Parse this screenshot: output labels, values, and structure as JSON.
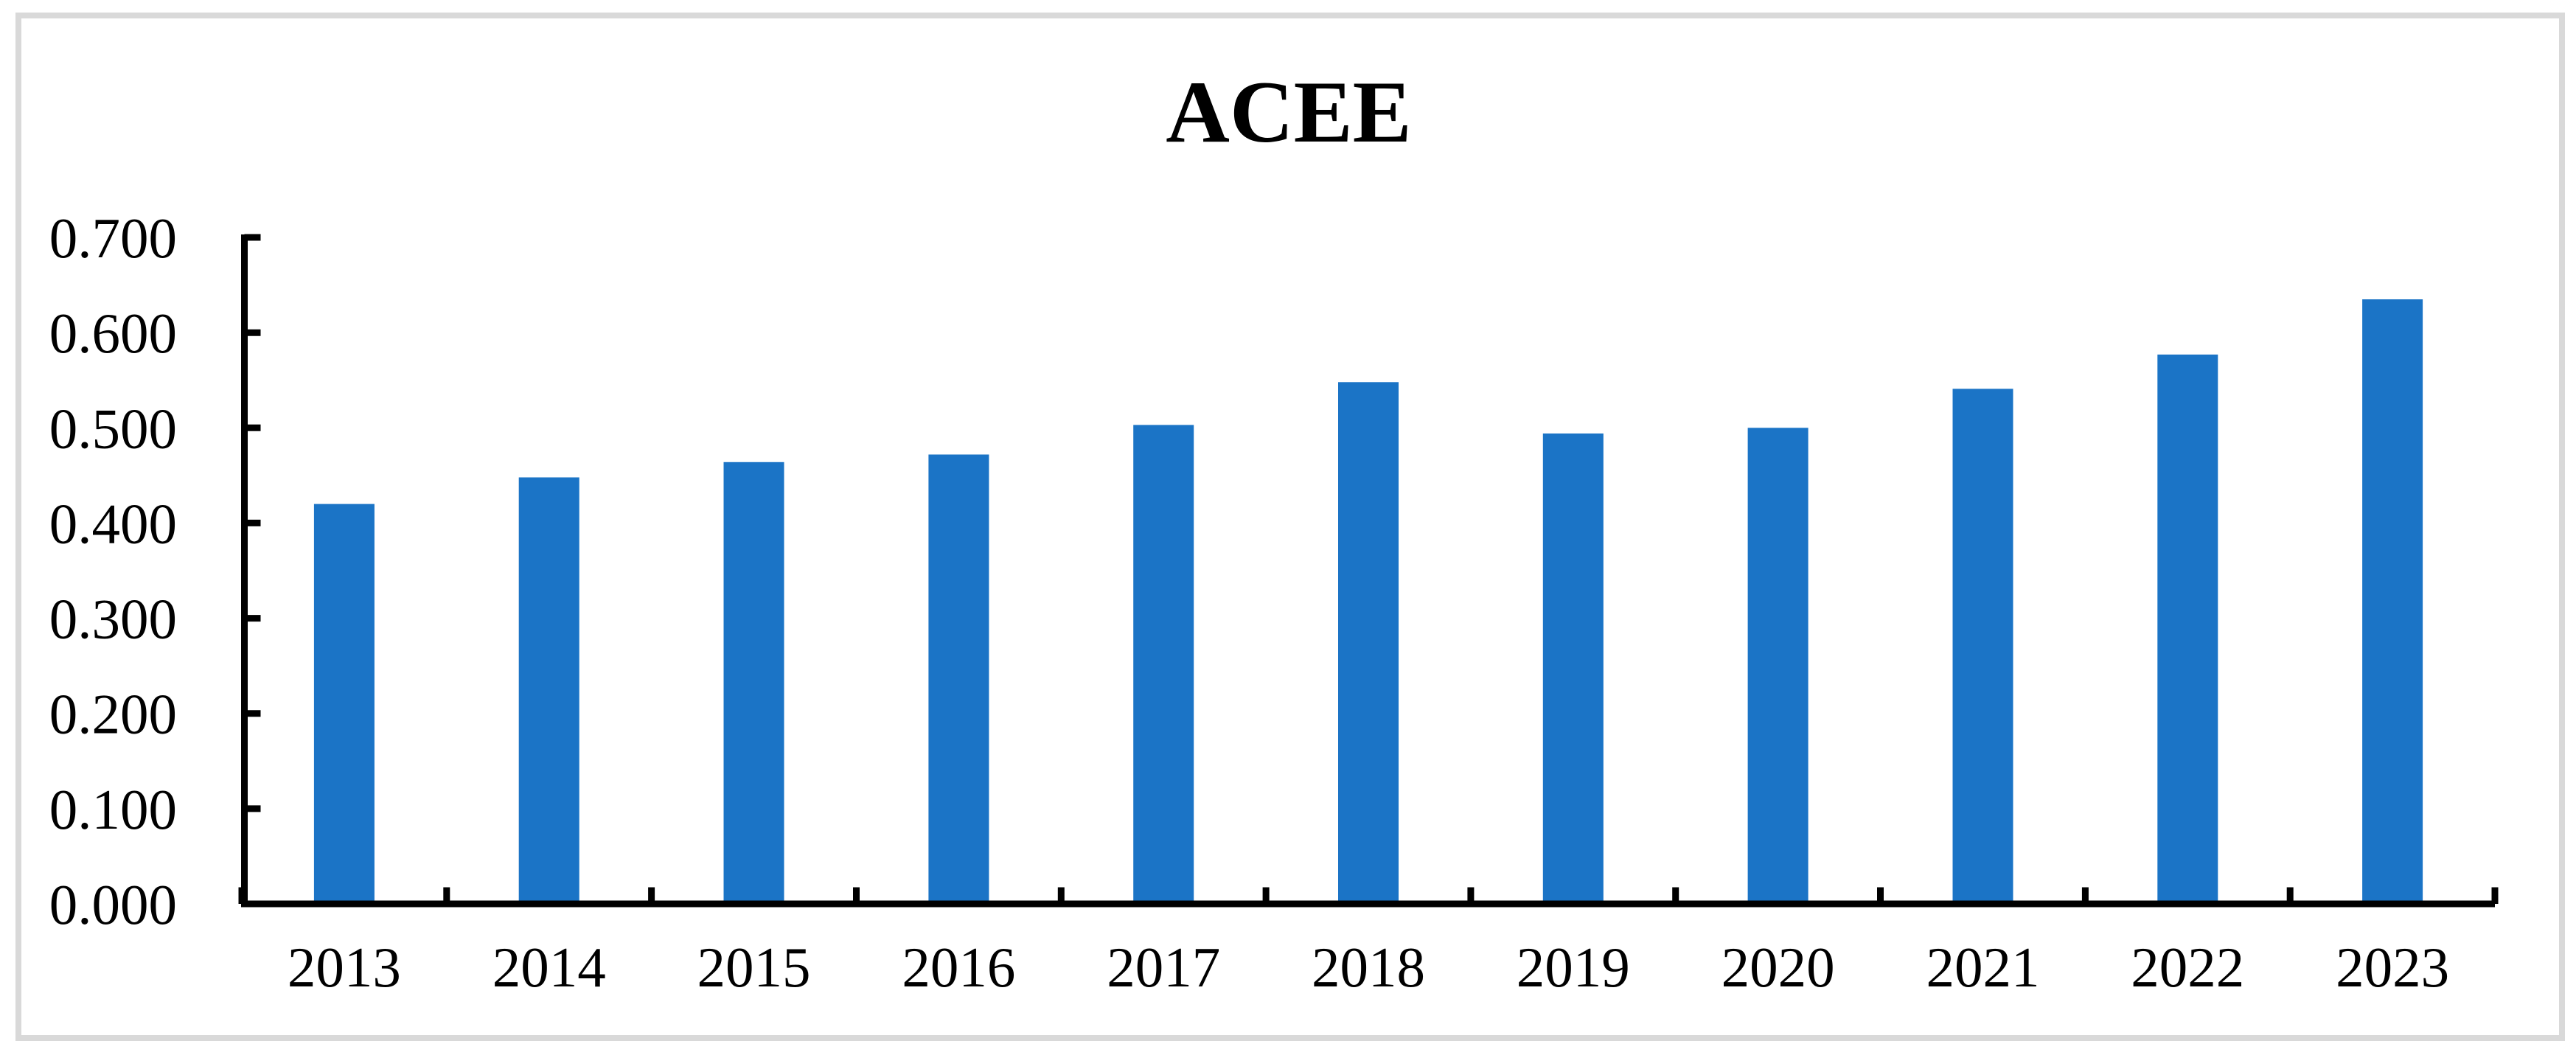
{
  "chart_data": {
    "type": "bar",
    "title": "ACEE",
    "categories": [
      "2013",
      "2014",
      "2015",
      "2016",
      "2017",
      "2018",
      "2019",
      "2020",
      "2021",
      "2022",
      "2023"
    ],
    "values": [
      0.42,
      0.448,
      0.464,
      0.472,
      0.503,
      0.548,
      0.494,
      0.5,
      0.541,
      0.577,
      0.635
    ],
    "ytick_labels": [
      "0.000",
      "0.100",
      "0.200",
      "0.300",
      "0.400",
      "0.500",
      "0.600",
      "0.700"
    ],
    "ylim": [
      0.0,
      0.7
    ],
    "ytick_step": 0.1,
    "xlabel": "",
    "ylabel": "",
    "grid": false,
    "legend": "none",
    "bar_color": "#1B74C6",
    "axis_color": "#000000",
    "frame_color": "#D9D9D9"
  }
}
